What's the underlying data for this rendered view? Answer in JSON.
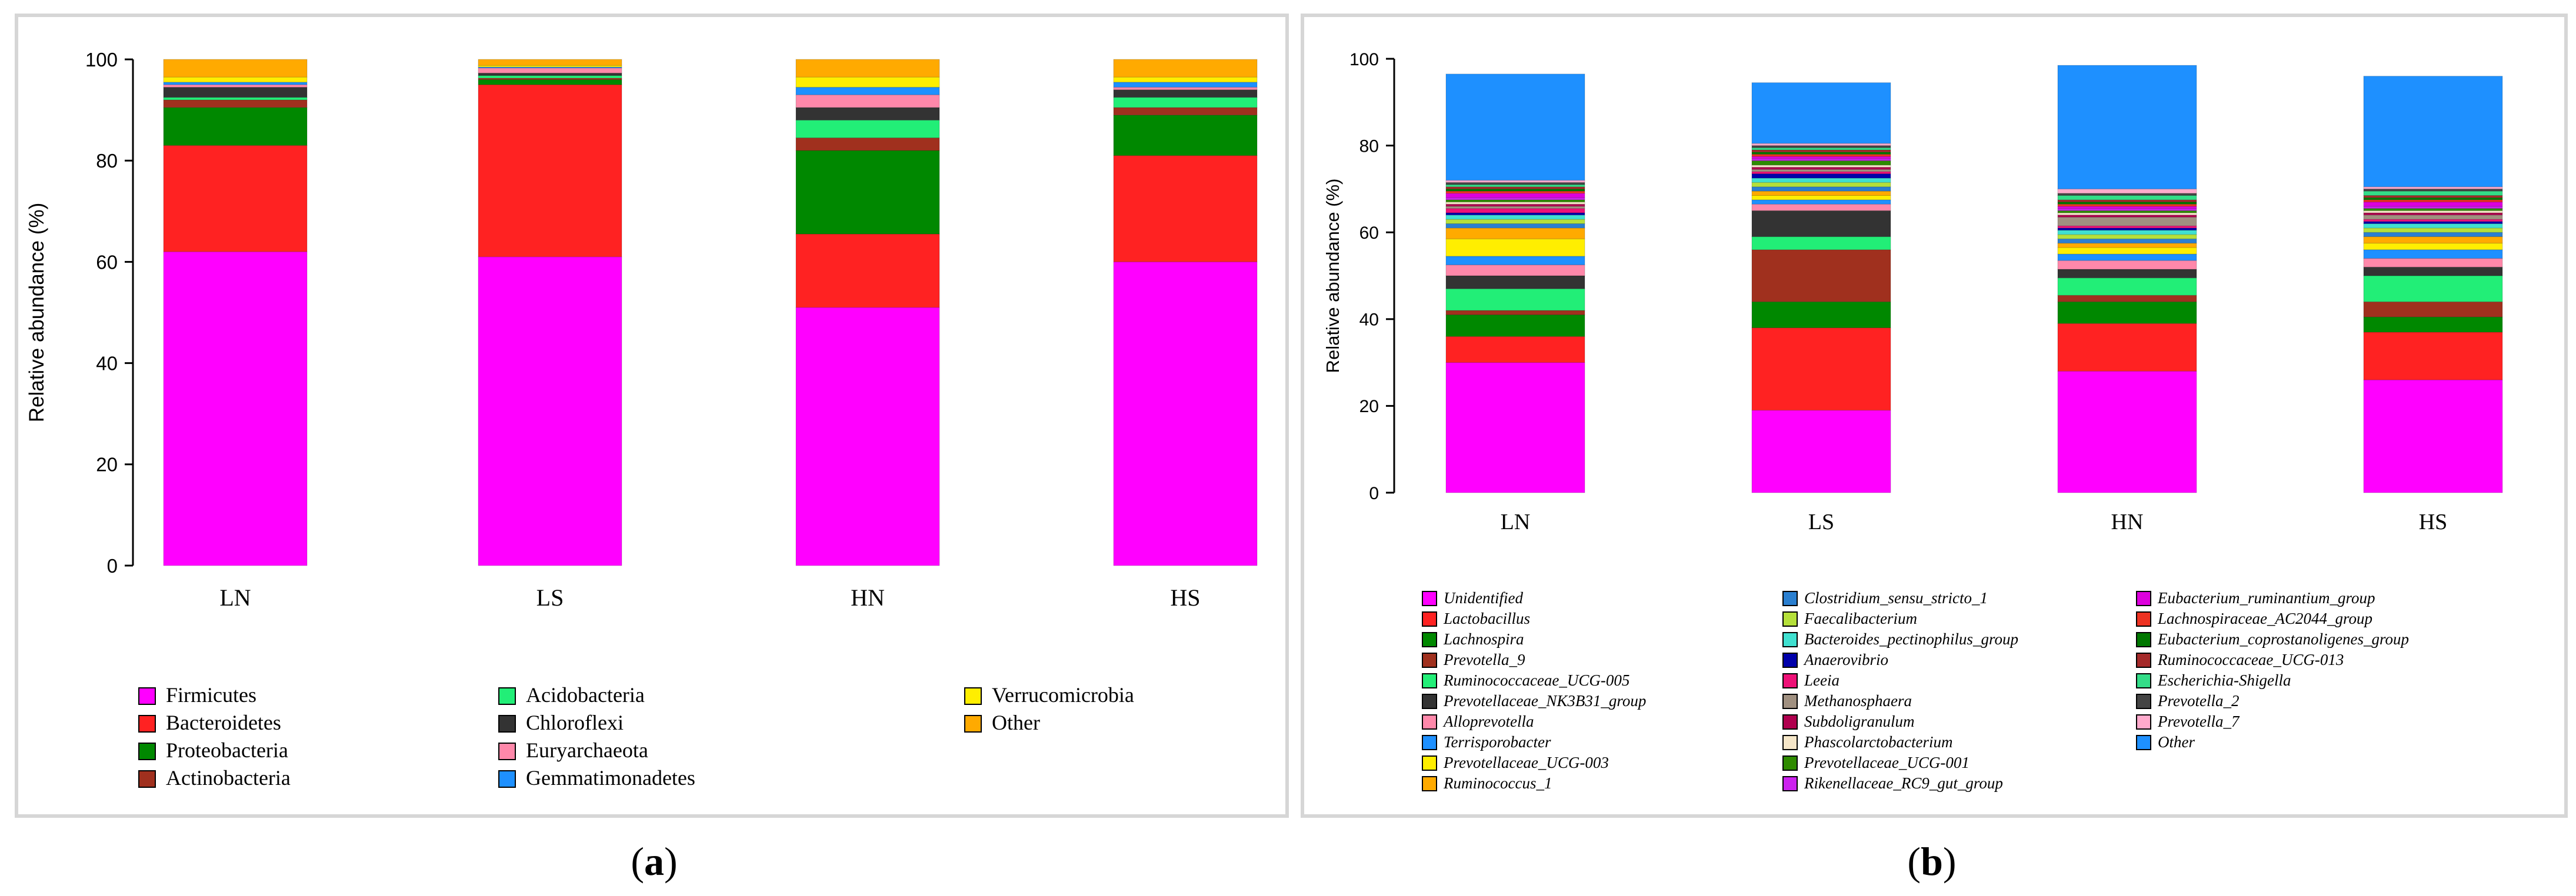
{
  "chart_data": [
    {
      "type": "bar",
      "stacked": true,
      "panel_label": "a",
      "ylabel": "Relative abundance (%)",
      "ylim": [
        0,
        100
      ],
      "yticks": [
        0,
        20,
        40,
        60,
        80,
        100
      ],
      "categories": [
        "LN",
        "LS",
        "HN",
        "HS"
      ],
      "series": [
        {
          "name": "Firmicutes",
          "color": "#ff00ff",
          "values": [
            62,
            61,
            51,
            60
          ]
        },
        {
          "name": "Bacteroidetes",
          "color": "#ff2222",
          "values": [
            21,
            34,
            14.5,
            21
          ]
        },
        {
          "name": "Proteobacteria",
          "color": "#008800",
          "values": [
            7.5,
            1,
            16.5,
            8
          ]
        },
        {
          "name": "Actinobacteria",
          "color": "#a0301e",
          "values": [
            1.5,
            0.3,
            2.5,
            1.5
          ]
        },
        {
          "name": "Acidobacteria",
          "color": "#22ee77",
          "values": [
            0.5,
            0.5,
            3.5,
            2
          ]
        },
        {
          "name": "Chloroflexi",
          "color": "#333333",
          "values": [
            2,
            0.5,
            2.5,
            1.5
          ]
        },
        {
          "name": "Euryarchaeota",
          "color": "#ff88aa",
          "values": [
            0.5,
            1,
            2.5,
            0.5
          ]
        },
        {
          "name": "Gemmatimonadetes",
          "color": "#1e90ff",
          "values": [
            0.5,
            0.2,
            1.5,
            1
          ]
        },
        {
          "name": "Verrucomicrobia",
          "color": "#ffee00",
          "values": [
            1,
            0.3,
            2,
            1
          ]
        },
        {
          "name": "Other",
          "color": "#ffaa00",
          "values": [
            3.5,
            1.2,
            3.5,
            3.5
          ]
        }
      ]
    },
    {
      "type": "bar",
      "stacked": true,
      "panel_label": "b",
      "ylabel": "Relative abundance (%)",
      "ylim": [
        0,
        100
      ],
      "yticks": [
        0,
        20,
        40,
        60,
        80,
        100
      ],
      "categories": [
        "LN",
        "LS",
        "HN",
        "HS"
      ],
      "series": [
        {
          "name": "Unidentified",
          "color": "#ff00ff",
          "values": [
            30,
            19,
            28,
            26
          ]
        },
        {
          "name": "Lactobacillus",
          "color": "#ff2222",
          "values": [
            6,
            19,
            11,
            11
          ]
        },
        {
          "name": "Lachnospira",
          "color": "#008800",
          "values": [
            5,
            6,
            5,
            3.5
          ]
        },
        {
          "name": "Prevotella_9",
          "color": "#a0301e",
          "values": [
            1,
            12,
            1.5,
            3.5
          ]
        },
        {
          "name": "Ruminococcaceae_UCG-005",
          "color": "#22ee77",
          "values": [
            5,
            3,
            4,
            6
          ]
        },
        {
          "name": "Prevotellaceae_NK3B31_group",
          "color": "#333333",
          "values": [
            3,
            6,
            2,
            2
          ]
        },
        {
          "name": "Alloprevotella",
          "color": "#ff88aa",
          "values": [
            2.5,
            1.5,
            2,
            2
          ]
        },
        {
          "name": "Terrisporobacter",
          "color": "#1e90ff",
          "values": [
            2,
            1,
            1.5,
            2
          ]
        },
        {
          "name": "Prevotellaceae_UCG-003",
          "color": "#ffee00",
          "values": [
            4,
            1,
            1.5,
            1.5
          ]
        },
        {
          "name": "Ruminococcus_1",
          "color": "#ffaa00",
          "values": [
            2.5,
            1,
            1,
            1.5
          ]
        },
        {
          "name": "Clostridium_sensu_stricto_1",
          "color": "#2a7fd0",
          "values": [
            1,
            1,
            1,
            1
          ]
        },
        {
          "name": "Faecalibacterium",
          "color": "#b5e03a",
          "values": [
            1,
            1,
            1,
            1
          ]
        },
        {
          "name": "Bacteroides_pectinophilus_group",
          "color": "#40e0d0",
          "values": [
            1,
            1,
            1,
            1
          ]
        },
        {
          "name": "Anaerovibrio",
          "color": "#0000aa",
          "values": [
            0.5,
            1,
            0.5,
            0.5
          ]
        },
        {
          "name": "Leeia",
          "color": "#ee1177",
          "values": [
            1,
            0.5,
            0.5,
            0.5
          ]
        },
        {
          "name": "Methanosphaera",
          "color": "#a09080",
          "values": [
            0.5,
            0.5,
            2,
            1
          ]
        },
        {
          "name": "Subdoligranulum",
          "color": "#b0004e",
          "values": [
            0.5,
            0.5,
            0.5,
            0.5
          ]
        },
        {
          "name": "Phascolarctobacterium",
          "color": "#f5e6c8",
          "values": [
            0.5,
            0.5,
            0.5,
            0.5
          ]
        },
        {
          "name": "Prevotellaceae_UCG-001",
          "color": "#2e8b00",
          "values": [
            0.5,
            1,
            0.5,
            0.5
          ]
        },
        {
          "name": "Rikenellaceae_RC9_gut_group",
          "color": "#cc22ee",
          "values": [
            0.5,
            0.5,
            0.5,
            0.5
          ]
        },
        {
          "name": "Eubacterium_ruminantium_group",
          "color": "#dd00dd",
          "values": [
            1,
            0.5,
            0.5,
            1
          ]
        },
        {
          "name": "Lachnospiraceae_AC2044_group",
          "color": "#ee3322",
          "values": [
            0.5,
            0.5,
            0.5,
            0.5
          ]
        },
        {
          "name": "Eubacterium_coprostanoligenes_group",
          "color": "#007700",
          "values": [
            0.5,
            0.5,
            0.5,
            0.5
          ]
        },
        {
          "name": "Ruminococcaceae_UCG-013",
          "color": "#a52a2a",
          "values": [
            0.5,
            0.5,
            0.5,
            0.5
          ]
        },
        {
          "name": "Escherichia-Shigella",
          "color": "#33dd88",
          "values": [
            0.5,
            0.5,
            1,
            1
          ]
        },
        {
          "name": "Prevotella_2",
          "color": "#444444",
          "values": [
            0.5,
            0.5,
            0.5,
            0.5
          ]
        },
        {
          "name": "Prevotella_7",
          "color": "#ffaacc",
          "values": [
            0.5,
            0.5,
            1,
            0.5
          ]
        },
        {
          "name": "Other",
          "color": "#1e90ff",
          "values": [
            24.5,
            14,
            28.5,
            25.5
          ]
        }
      ]
    }
  ]
}
